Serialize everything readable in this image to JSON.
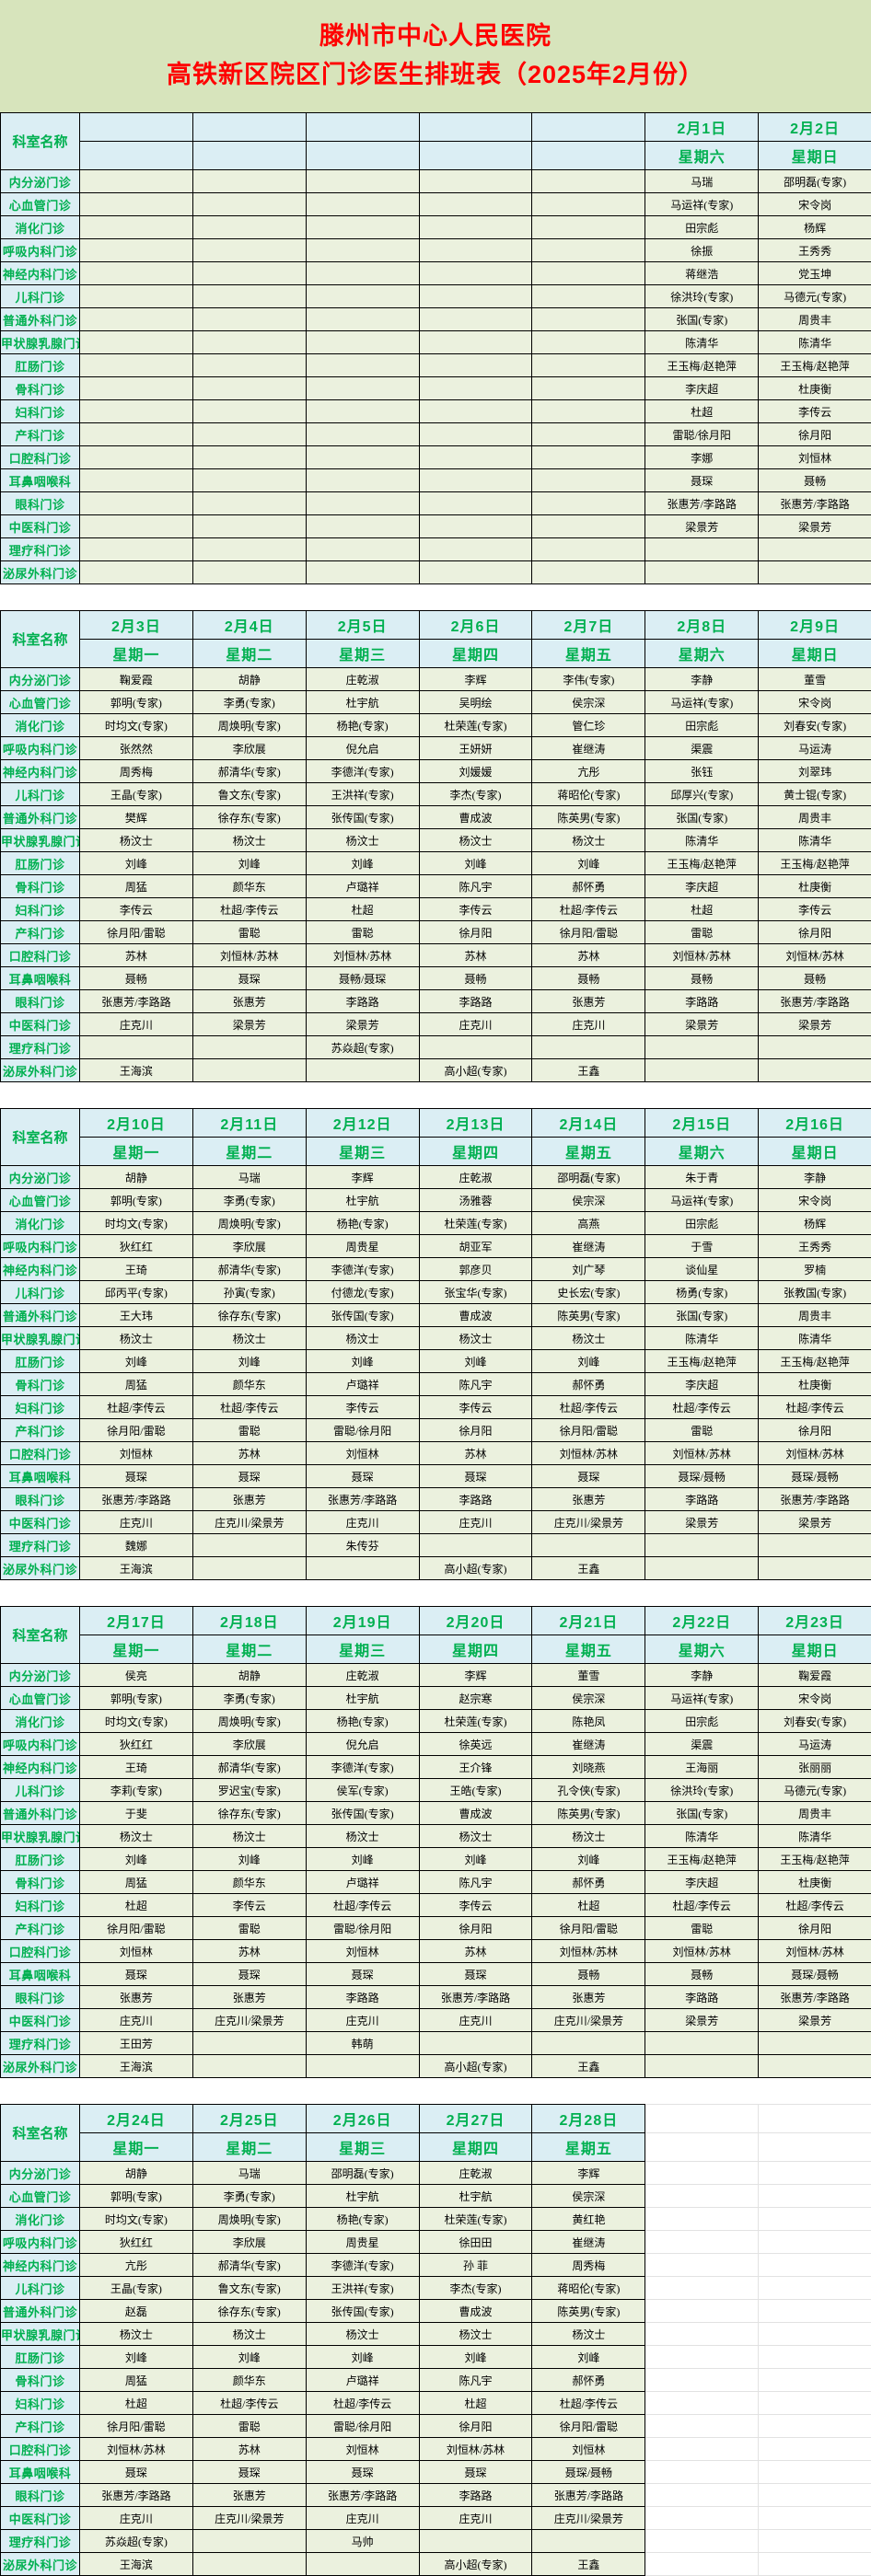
{
  "title": {
    "line1": "滕州市中心人民医院",
    "line2": "高铁新区院区门诊医生排班表（2025年2月份）"
  },
  "header_label": "科室名称",
  "colors": {
    "title_text": "#ff0000",
    "header_text": "#00b050",
    "header_bg": "#dbeef4",
    "cell_bg": "#ebf1de",
    "banner_bg": "#d7e4bc",
    "grid_line": "#000000"
  },
  "departments": [
    "内分泌门诊",
    "心血管门诊",
    "消化门诊",
    "呼吸内科门诊",
    "神经内科门诊",
    "儿科门诊",
    "普通外科门诊",
    "甲状腺乳腺门诊",
    "肛肠门诊",
    "骨科门诊",
    "妇科门诊",
    "产科门诊",
    "口腔科门诊",
    "耳鼻咽喉科",
    "眼科门诊",
    "中医科门诊",
    "理疗科门诊",
    "泌尿外科门诊"
  ],
  "sections": [
    {
      "dates": [
        "",
        "",
        "",
        "",
        "",
        "2月1日",
        "2月2日"
      ],
      "weekdays": [
        "",
        "",
        "",
        "",
        "",
        "星期六",
        "星期日"
      ],
      "rows": [
        [
          "",
          "",
          "",
          "",
          "",
          "马瑞",
          "邵明磊(专家)"
        ],
        [
          "",
          "",
          "",
          "",
          "",
          "马运祥(专家)",
          "宋令岗"
        ],
        [
          "",
          "",
          "",
          "",
          "",
          "田宗彪",
          "杨辉"
        ],
        [
          "",
          "",
          "",
          "",
          "",
          "徐振",
          "王秀秀"
        ],
        [
          "",
          "",
          "",
          "",
          "",
          "蒋继浩",
          "党玉坤"
        ],
        [
          "",
          "",
          "",
          "",
          "",
          "徐洪玲(专家)",
          "马德元(专家)"
        ],
        [
          "",
          "",
          "",
          "",
          "",
          "张国(专家)",
          "周贵丰"
        ],
        [
          "",
          "",
          "",
          "",
          "",
          "陈清华",
          "陈清华"
        ],
        [
          "",
          "",
          "",
          "",
          "",
          "王玉梅/赵艳萍",
          "王玉梅/赵艳萍"
        ],
        [
          "",
          "",
          "",
          "",
          "",
          "李庆超",
          "杜庚衡"
        ],
        [
          "",
          "",
          "",
          "",
          "",
          "杜超",
          "李传云"
        ],
        [
          "",
          "",
          "",
          "",
          "",
          "雷聪/徐月阳",
          "徐月阳"
        ],
        [
          "",
          "",
          "",
          "",
          "",
          "李娜",
          "刘恒林"
        ],
        [
          "",
          "",
          "",
          "",
          "",
          "聂琛",
          "聂畅"
        ],
        [
          "",
          "",
          "",
          "",
          "",
          "张惠芳/李路路",
          "张惠芳/李路路"
        ],
        [
          "",
          "",
          "",
          "",
          "",
          "梁景芳",
          "梁景芳"
        ],
        [
          "",
          "",
          "",
          "",
          "",
          "",
          ""
        ],
        [
          "",
          "",
          "",
          "",
          "",
          "",
          ""
        ]
      ]
    },
    {
      "dates": [
        "2月3日",
        "2月4日",
        "2月5日",
        "2月6日",
        "2月7日",
        "2月8日",
        "2月9日"
      ],
      "weekdays": [
        "星期一",
        "星期二",
        "星期三",
        "星期四",
        "星期五",
        "星期六",
        "星期日"
      ],
      "rows": [
        [
          "鞠爱霞",
          "胡静",
          "庄乾淑",
          "李辉",
          "李伟(专家)",
          "李静",
          "董雪"
        ],
        [
          "郭明(专家)",
          "李勇(专家)",
          "杜宇航",
          "吴明绘",
          "侯宗深",
          "马运祥(专家)",
          "宋令岗"
        ],
        [
          "时均文(专家)",
          "周焕明(专家)",
          "杨艳(专家)",
          "杜荣莲(专家)",
          "管仁珍",
          "田宗彪",
          "刘春安(专家)"
        ],
        [
          "张然然",
          "李欣展",
          "倪允启",
          "王妍妍",
          "崔继涛",
          "渠震",
          "马运涛"
        ],
        [
          "周秀梅",
          "郝清华(专家)",
          "李德洋(专家)",
          "刘媛媛",
          "亢彤",
          "张钰",
          "刘翠玮"
        ],
        [
          "王晶(专家)",
          "鲁文东(专家)",
          "王洪祥(专家)",
          "李杰(专家)",
          "蒋昭伦(专家)",
          "邱厚兴(专家)",
          "黄士锟(专家)"
        ],
        [
          "樊辉",
          "徐存东(专家)",
          "张传国(专家)",
          "曹成波",
          "陈英男(专家)",
          "张国(专家)",
          "周贵丰"
        ],
        [
          "杨汶士",
          "杨汶士",
          "杨汶士",
          "杨汶士",
          "杨汶士",
          "陈清华",
          "陈清华"
        ],
        [
          "刘峰",
          "刘峰",
          "刘峰",
          "刘峰",
          "刘峰",
          "王玉梅/赵艳萍",
          "王玉梅/赵艳萍"
        ],
        [
          "周猛",
          "颜华东",
          "卢璐祥",
          "陈凡宇",
          "郝怀勇",
          "李庆超",
          "杜庚衡"
        ],
        [
          "李传云",
          "杜超/李传云",
          "杜超",
          "李传云",
          "杜超/李传云",
          "杜超",
          "李传云"
        ],
        [
          "徐月阳/雷聪",
          "雷聪",
          "雷聪",
          "徐月阳",
          "徐月阳/雷聪",
          "雷聪",
          "徐月阳"
        ],
        [
          "苏林",
          "刘恒林/苏林",
          "刘恒林/苏林",
          "苏林",
          "苏林",
          "刘恒林/苏林",
          "刘恒林/苏林"
        ],
        [
          "聂畅",
          "聂琛",
          "聂畅/聂琛",
          "聂畅",
          "聂畅",
          "聂畅",
          "聂畅"
        ],
        [
          "张惠芳/李路路",
          "张惠芳",
          "李路路",
          "李路路",
          "张惠芳",
          "李路路",
          "张惠芳/李路路"
        ],
        [
          "庄克川",
          "梁景芳",
          "梁景芳",
          "庄克川",
          "庄克川",
          "梁景芳",
          "梁景芳"
        ],
        [
          "",
          "",
          "苏焱超(专家)",
          "",
          "",
          "",
          ""
        ],
        [
          "王海滨",
          "",
          "",
          "高小超(专家)",
          "王鑫",
          "",
          ""
        ]
      ]
    },
    {
      "dates": [
        "2月10日",
        "2月11日",
        "2月12日",
        "2月13日",
        "2月14日",
        "2月15日",
        "2月16日"
      ],
      "weekdays": [
        "星期一",
        "星期二",
        "星期三",
        "星期四",
        "星期五",
        "星期六",
        "星期日"
      ],
      "rows": [
        [
          "胡静",
          "马瑞",
          "李辉",
          "庄乾淑",
          "邵明磊(专家)",
          "朱于青",
          "李静"
        ],
        [
          "郭明(专家)",
          "李勇(专家)",
          "杜宇航",
          "汤雅蓉",
          "侯宗深",
          "马运祥(专家)",
          "宋令岗"
        ],
        [
          "时均文(专家)",
          "周焕明(专家)",
          "杨艳(专家)",
          "杜荣莲(专家)",
          "高燕",
          "田宗彪",
          "杨辉"
        ],
        [
          "狄红红",
          "李欣展",
          "周贵星",
          "胡亚军",
          "崔继涛",
          "于雪",
          "王秀秀"
        ],
        [
          "王琦",
          "郝清华(专家)",
          "李德洋(专家)",
          "郭彦贝",
          "刘广琴",
          "谈仙星",
          "罗楠"
        ],
        [
          "邱丙平(专家)",
          "孙寅(专家)",
          "付德龙(专家)",
          "张宝华(专家)",
          "史长宏(专家)",
          "杨勇(专家)",
          "张教国(专家)"
        ],
        [
          "王大玮",
          "徐存东(专家)",
          "张传国(专家)",
          "曹成波",
          "陈英男(专家)",
          "张国(专家)",
          "周贵丰"
        ],
        [
          "杨汶士",
          "杨汶士",
          "杨汶士",
          "杨汶士",
          "杨汶士",
          "陈清华",
          "陈清华"
        ],
        [
          "刘峰",
          "刘峰",
          "刘峰",
          "刘峰",
          "刘峰",
          "王玉梅/赵艳萍",
          "王玉梅/赵艳萍"
        ],
        [
          "周猛",
          "颜华东",
          "卢璐祥",
          "陈凡宇",
          "郝怀勇",
          "李庆超",
          "杜庚衡"
        ],
        [
          "杜超/李传云",
          "杜超/李传云",
          "李传云",
          "李传云",
          "杜超/李传云",
          "杜超/李传云",
          "杜超/李传云"
        ],
        [
          "徐月阳/雷聪",
          "雷聪",
          "雷聪/徐月阳",
          "徐月阳",
          "徐月阳/雷聪",
          "雷聪",
          "徐月阳"
        ],
        [
          "刘恒林",
          "苏林",
          "刘恒林",
          "苏林",
          "刘恒林/苏林",
          "刘恒林/苏林",
          "刘恒林/苏林"
        ],
        [
          "聂琛",
          "聂琛",
          "聂琛",
          "聂琛",
          "聂琛",
          "聂琛/聂畅",
          "聂琛/聂畅"
        ],
        [
          "张惠芳/李路路",
          "张惠芳",
          "张惠芳/李路路",
          "李路路",
          "张惠芳",
          "李路路",
          "张惠芳/李路路"
        ],
        [
          "庄克川",
          "庄克川/梁景芳",
          "庄克川",
          "庄克川",
          "庄克川/梁景芳",
          "梁景芳",
          "梁景芳"
        ],
        [
          "魏娜",
          "",
          "朱传芬",
          "",
          "",
          "",
          ""
        ],
        [
          "王海滨",
          "",
          "",
          "高小超(专家)",
          "王鑫",
          "",
          ""
        ]
      ]
    },
    {
      "dates": [
        "2月17日",
        "2月18日",
        "2月19日",
        "2月20日",
        "2月21日",
        "2月22日",
        "2月23日"
      ],
      "weekdays": [
        "星期一",
        "星期二",
        "星期三",
        "星期四",
        "星期五",
        "星期六",
        "星期日"
      ],
      "rows": [
        [
          "侯亮",
          "胡静",
          "庄乾淑",
          "李辉",
          "董雪",
          "李静",
          "鞠爱霞"
        ],
        [
          "郭明(专家)",
          "李勇(专家)",
          "杜宇航",
          "赵宗寒",
          "侯宗深",
          "马运祥(专家)",
          "宋令岗"
        ],
        [
          "时均文(专家)",
          "周焕明(专家)",
          "杨艳(专家)",
          "杜荣莲(专家)",
          "陈艳凤",
          "田宗彪",
          "刘春安(专家)"
        ],
        [
          "狄红红",
          "李欣展",
          "倪允启",
          "徐英远",
          "崔继涛",
          "渠震",
          "马运涛"
        ],
        [
          "王琦",
          "郝清华(专家)",
          "李德洋(专家)",
          "王介锋",
          "刘晓燕",
          "王海丽",
          "张丽丽"
        ],
        [
          "李莉(专家)",
          "罗迟宝(专家)",
          "侯军(专家)",
          "王皓(专家)",
          "孔令侠(专家)",
          "徐洪玲(专家)",
          "马德元(专家)"
        ],
        [
          "于斐",
          "徐存东(专家)",
          "张传国(专家)",
          "曹成波",
          "陈英男(专家)",
          "张国(专家)",
          "周贵丰"
        ],
        [
          "杨汶士",
          "杨汶士",
          "杨汶士",
          "杨汶士",
          "杨汶士",
          "陈清华",
          "陈清华"
        ],
        [
          "刘峰",
          "刘峰",
          "刘峰",
          "刘峰",
          "刘峰",
          "王玉梅/赵艳萍",
          "王玉梅/赵艳萍"
        ],
        [
          "周猛",
          "颜华东",
          "卢璐祥",
          "陈凡宇",
          "郝怀勇",
          "李庆超",
          "杜庚衡"
        ],
        [
          "杜超",
          "李传云",
          "杜超/李传云",
          "李传云",
          "杜超",
          "杜超/李传云",
          "杜超/李传云"
        ],
        [
          "徐月阳/雷聪",
          "雷聪",
          "雷聪/徐月阳",
          "徐月阳",
          "徐月阳/雷聪",
          "雷聪",
          "徐月阳"
        ],
        [
          "刘恒林",
          "苏林",
          "刘恒林",
          "苏林",
          "刘恒林/苏林",
          "刘恒林/苏林",
          "刘恒林/苏林"
        ],
        [
          "聂琛",
          "聂琛",
          "聂琛",
          "聂琛",
          "聂畅",
          "聂畅",
          "聂琛/聂畅"
        ],
        [
          "张惠芳",
          "张惠芳",
          "李路路",
          "张惠芳/李路路",
          "张惠芳",
          "李路路",
          "张惠芳/李路路"
        ],
        [
          "庄克川",
          "庄克川/梁景芳",
          "庄克川",
          "庄克川",
          "庄克川/梁景芳",
          "梁景芳",
          "梁景芳"
        ],
        [
          "王田芳",
          "",
          "韩萌",
          "",
          "",
          "",
          ""
        ],
        [
          "王海滨",
          "",
          "",
          "高小超(专家)",
          "王鑫",
          "",
          ""
        ]
      ]
    },
    {
      "dates": [
        "2月24日",
        "2月25日",
        "2月26日",
        "2月27日",
        "2月28日"
      ],
      "weekdays": [
        "星期一",
        "星期二",
        "星期三",
        "星期四",
        "星期五"
      ],
      "rows": [
        [
          "胡静",
          "马瑞",
          "邵明磊(专家)",
          "庄乾淑",
          "李辉"
        ],
        [
          "郭明(专家)",
          "李勇(专家)",
          "杜宇航",
          "杜宇航",
          "侯宗深"
        ],
        [
          "时均文(专家)",
          "周焕明(专家)",
          "杨艳(专家)",
          "杜荣莲(专家)",
          "黄红艳"
        ],
        [
          "狄红红",
          "李欣展",
          "周贵星",
          "徐田田",
          "崔继涛"
        ],
        [
          "亢彤",
          "郝清华(专家)",
          "李德洋(专家)",
          "孙  菲",
          "周秀梅"
        ],
        [
          "王晶(专家)",
          "鲁文东(专家)",
          "王洪祥(专家)",
          "李杰(专家)",
          "蒋昭伦(专家)"
        ],
        [
          "赵磊",
          "徐存东(专家)",
          "张传国(专家)",
          "曹成波",
          "陈英男(专家)"
        ],
        [
          "杨汶士",
          "杨汶士",
          "杨汶士",
          "杨汶士",
          "杨汶士"
        ],
        [
          "刘峰",
          "刘峰",
          "刘峰",
          "刘峰",
          "刘峰"
        ],
        [
          "周猛",
          "颜华东",
          "卢璐祥",
          "陈凡宇",
          "郝怀勇"
        ],
        [
          "杜超",
          "杜超/李传云",
          "杜超/李传云",
          "杜超",
          "杜超/李传云"
        ],
        [
          "徐月阳/雷聪",
          "雷聪",
          "雷聪/徐月阳",
          "徐月阳",
          "徐月阳/雷聪"
        ],
        [
          "刘恒林/苏林",
          "苏林",
          "刘恒林",
          "刘恒林/苏林",
          "刘恒林"
        ],
        [
          "聂琛",
          "聂琛",
          "聂琛",
          "聂琛",
          "聂琛/聂畅"
        ],
        [
          "张惠芳/李路路",
          "张惠芳",
          "张惠芳/李路路",
          "李路路",
          "张惠芳/李路路"
        ],
        [
          "庄克川",
          "庄克川/梁景芳",
          "庄克川",
          "庄克川",
          "庄克川/梁景芳"
        ],
        [
          "苏焱超(专家)",
          "",
          "马帅",
          "",
          ""
        ],
        [
          "王海滨",
          "",
          "",
          "高小超(专家)",
          "王鑫"
        ]
      ]
    }
  ]
}
